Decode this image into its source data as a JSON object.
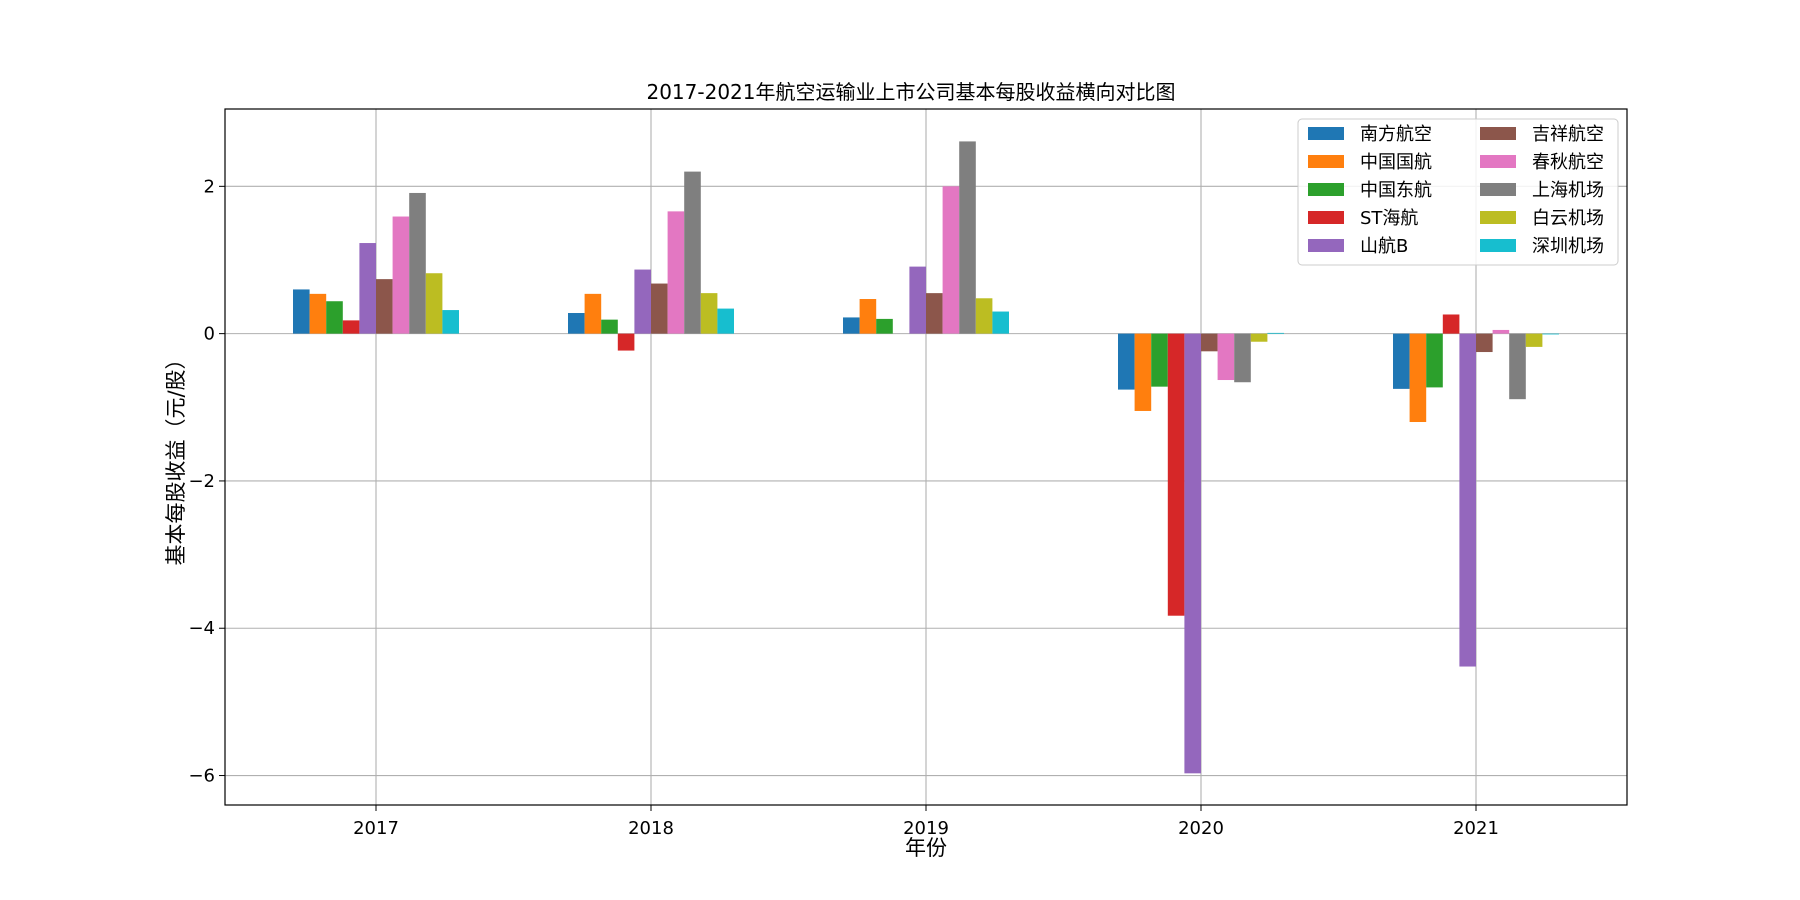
{
  "chart_data": {
    "type": "bar",
    "title": "2017-2021年航空运输业上市公司基本每股收益横向对比图",
    "xlabel": "年份",
    "ylabel": "基本每股收益（元/股）",
    "categories": [
      "2017",
      "2018",
      "2019",
      "2020",
      "2021"
    ],
    "ylim": [
      -6.4,
      3.05
    ],
    "yticks": [
      2,
      0,
      -2,
      -4,
      -6
    ],
    "ytick_labels": [
      "2",
      "0",
      "−2",
      "−4",
      "−6"
    ],
    "grid": true,
    "legend_position": "top-right",
    "legend_columns": 2,
    "series": [
      {
        "name": "南方航空",
        "color": "#1f77b4",
        "values": [
          0.6,
          0.28,
          0.22,
          -0.76,
          -0.75
        ]
      },
      {
        "name": "中国国航",
        "color": "#ff7f0e",
        "values": [
          0.54,
          0.54,
          0.47,
          -1.05,
          -1.2
        ]
      },
      {
        "name": "中国东航",
        "color": "#2ca02c",
        "values": [
          0.44,
          0.19,
          0.2,
          -0.72,
          -0.73
        ]
      },
      {
        "name": "ST海航",
        "color": "#d62728",
        "values": [
          0.18,
          -0.23,
          0.0,
          -3.83,
          0.26
        ]
      },
      {
        "name": "山航B",
        "color": "#9467bd",
        "values": [
          1.23,
          0.87,
          0.91,
          -5.97,
          -4.52
        ]
      },
      {
        "name": "吉祥航空",
        "color": "#8c564b",
        "values": [
          0.74,
          0.68,
          0.55,
          -0.24,
          -0.25
        ]
      },
      {
        "name": "春秋航空",
        "color": "#e377c2",
        "values": [
          1.59,
          1.66,
          2.0,
          -0.63,
          0.05
        ]
      },
      {
        "name": "上海机场",
        "color": "#7f7f7f",
        "values": [
          1.91,
          2.2,
          2.61,
          -0.66,
          -0.89
        ]
      },
      {
        "name": "白云机场",
        "color": "#bcbd22",
        "values": [
          0.82,
          0.55,
          0.48,
          -0.11,
          -0.18
        ]
      },
      {
        "name": "深圳机场",
        "color": "#17becf",
        "values": [
          0.32,
          0.34,
          0.3,
          0.01,
          -0.01
        ]
      }
    ]
  }
}
